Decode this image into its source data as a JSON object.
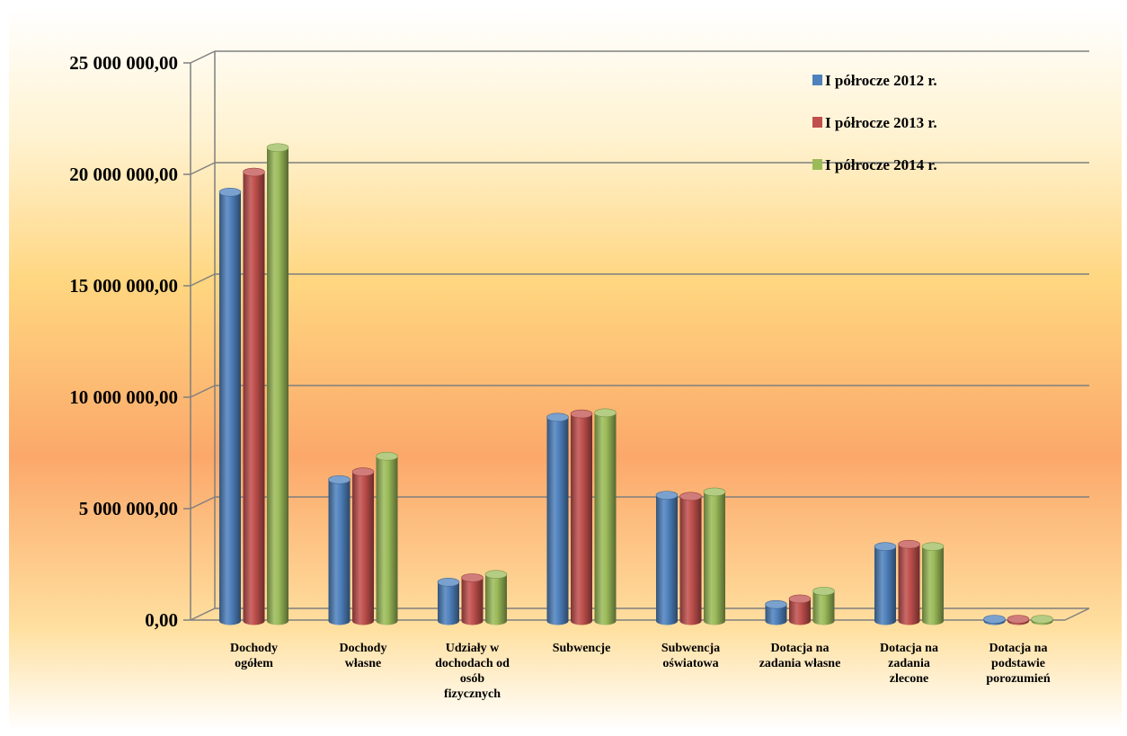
{
  "chart_data": {
    "type": "bar",
    "categories": [
      [
        "Dochody",
        "ogółem"
      ],
      [
        "Dochody",
        "własne"
      ],
      [
        "Udziały w",
        "dochodach od",
        "osób",
        "fizycznych"
      ],
      [
        "Subwencje"
      ],
      [
        "Subwencja",
        "oświatowa"
      ],
      [
        "Dotacja na",
        "zadania własne"
      ],
      [
        "Dotacja na",
        "zadania",
        "zlecone"
      ],
      [
        "Dotacja na",
        "podstawie",
        "porozumień"
      ]
    ],
    "series": [
      {
        "name": "I półrocze 2012 r.",
        "color": "#4F81BD",
        "values": [
          19200000,
          6300000,
          1700000,
          9100000,
          5600000,
          700000,
          3300000,
          0
        ]
      },
      {
        "name": "I półrocze 2013 r.",
        "color": "#C0504D",
        "values": [
          20100000,
          6650000,
          1900000,
          9250000,
          5550000,
          950000,
          3400000,
          0
        ]
      },
      {
        "name": "I półrocze 2014 r.",
        "color": "#9BBB59",
        "values": [
          21200000,
          7350000,
          2050000,
          9300000,
          5750000,
          1300000,
          3300000,
          0
        ]
      }
    ],
    "y_ticks": [
      "0,00",
      "5 000 000,00",
      "10 000 000,00",
      "15 000 000,00",
      "20 000 000,00",
      "25 000 000,00"
    ],
    "ylim": [
      0,
      25000000
    ],
    "grid": true,
    "legend_position": "top-right",
    "background_gradient": [
      "#FFFFFF",
      "#FFF2D0",
      "#FFD680",
      "#FBA86A",
      "#FFE0A0",
      "#FFFFFF"
    ]
  }
}
